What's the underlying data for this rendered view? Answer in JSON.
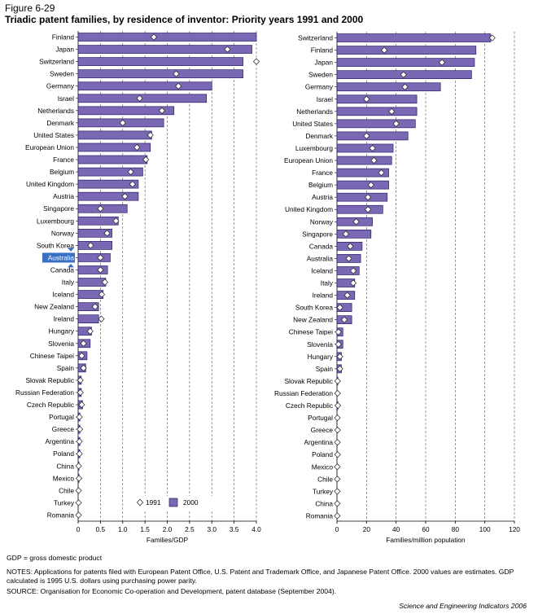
{
  "figure_label": "Figure 6-29",
  "title": "Triadic patent families, by residence of inventor: Priority years 1991 and 2000",
  "chart_data": [
    {
      "type": "bar",
      "name": "gdp-panel",
      "xlabel": "Families/GDP",
      "xlim": [
        0,
        4.0
      ],
      "ticks": [
        "0",
        "0.5",
        "1.0",
        "1.5",
        "2.0",
        "2.5",
        "3.0",
        "3.5",
        "4.0"
      ],
      "grid": "vertical dashed",
      "highlighted_category": "Australia",
      "legend": {
        "placement": "bottom-right",
        "marker_label": "1991",
        "bar_label": "2000"
      },
      "categories": [
        "Finland",
        "Japan",
        "Switzerland",
        "Sweden",
        "Germany",
        "Israel",
        "Netherlands",
        "Denmark",
        "United States",
        "European Union",
        "France",
        "Belgium",
        "United Kingdom",
        "Austria",
        "Singapore",
        "Luxembourg",
        "Norway",
        "South Korea",
        "Australia",
        "Canada",
        "Italy",
        "Iceland",
        "New Zealand",
        "Ireland",
        "Hungary",
        "Slovenia",
        "Chinese Taipei",
        "Spain",
        "Slovak Republic",
        "Russian Federation",
        "Czech Republic",
        "Portugal",
        "Greece",
        "Argentina",
        "Poland",
        "China",
        "Mexico",
        "Chile",
        "Turkey",
        "Romania"
      ],
      "series": [
        {
          "name": "2000",
          "values": [
            4.0,
            3.9,
            3.7,
            3.7,
            3.0,
            2.88,
            2.15,
            1.92,
            1.65,
            1.62,
            1.55,
            1.45,
            1.35,
            1.35,
            1.1,
            0.9,
            0.76,
            0.76,
            0.72,
            0.66,
            0.62,
            0.56,
            0.46,
            0.46,
            0.3,
            0.27,
            0.2,
            0.17,
            0.07,
            0.07,
            0.1,
            0.04,
            0.04,
            0.04,
            0.04,
            0.02,
            0.02,
            0.01,
            0.01,
            0.01
          ]
        },
        {
          "name": "1991",
          "values": [
            1.7,
            3.35,
            4.0,
            2.2,
            2.25,
            1.38,
            1.88,
            1.0,
            1.62,
            1.32,
            1.52,
            1.18,
            1.22,
            1.05,
            0.5,
            0.85,
            0.65,
            0.28,
            0.5,
            0.5,
            0.6,
            0.53,
            0.38,
            0.52,
            0.27,
            0.12,
            0.08,
            0.12,
            0.05,
            0.05,
            0.08,
            0.03,
            0.04,
            0.03,
            0.03,
            0.01,
            0.02,
            0.01,
            0.01,
            0.01
          ]
        }
      ]
    },
    {
      "type": "bar",
      "name": "population-panel",
      "xlabel": "Families/million population",
      "xlim": [
        0,
        120
      ],
      "ticks": [
        "0",
        "20",
        "40",
        "60",
        "80",
        "100",
        "120"
      ],
      "grid": "vertical dashed",
      "categories": [
        "Switzerland",
        "Finland",
        "Japan",
        "Sweden",
        "Germany",
        "Israel",
        "Netherlands",
        "United States",
        "Denmark",
        "Luxembourg",
        "European Union",
        "France",
        "Belgium",
        "Austria",
        "United Kingdom",
        "Norway",
        "Singapore",
        "Canada",
        "Australia",
        "Iceland",
        "Italy",
        "Ireland",
        "South Korea",
        "New Zealand",
        "Chinese Taipei",
        "Slovenia",
        "Hungary",
        "Spain",
        "Slovak Republic",
        "Russian Federation",
        "Czech Republic",
        "Portugal",
        "Greece",
        "Argentina",
        "Poland",
        "Mexico",
        "Chile",
        "Turkey",
        "China",
        "Romania"
      ],
      "series": [
        {
          "name": "2000",
          "values": [
            104,
            94,
            93,
            91,
            70,
            54,
            54,
            53,
            48,
            38,
            37,
            35,
            35,
            34,
            31,
            24,
            23,
            17,
            16,
            15,
            12,
            12,
            10,
            10,
            4,
            4,
            3,
            3,
            0.6,
            0.4,
            0.6,
            0.4,
            0.4,
            0.3,
            0.4,
            0.2,
            0.2,
            0.2,
            0.2,
            0.2
          ]
        },
        {
          "name": "1991",
          "values": [
            105,
            32,
            71,
            45,
            46,
            20,
            37,
            40,
            20,
            24,
            25,
            30,
            23,
            21,
            21,
            13,
            6,
            9,
            8,
            11,
            11,
            7,
            2,
            5,
            1,
            1,
            2,
            2,
            0.4,
            0.4,
            0.6,
            0.3,
            0.4,
            0.3,
            0.4,
            0.2,
            0.2,
            0.2,
            0.2,
            0.2
          ]
        }
      ]
    }
  ],
  "gdp_note": "GDP = gross domestic product",
  "notes": "NOTES: Applications for patents filed with European Patent Office, U.S. Patent and Trademark Office, and Japanese Patent Office. 2000 values are estimates. GDP calculated is 1995 U.S. dollars using purchasing power parity.",
  "source": "SOURCE: Organisation for Economic Co-operation and Development, patent database (September 2004).",
  "credit": "Science and Engineering Indicators 2006",
  "colors": {
    "bar_fill": "#7b68b5",
    "bar_stroke": "#2a2060",
    "highlight_bg": "#3a6fc4",
    "grid": "#555555"
  }
}
